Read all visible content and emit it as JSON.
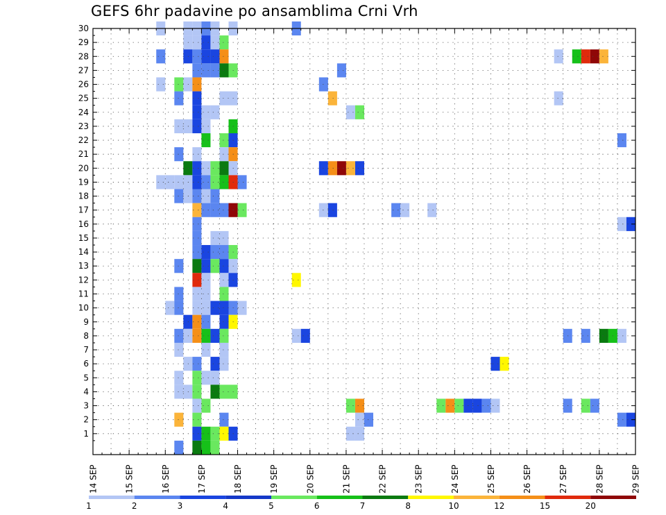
{
  "chart_data": {
    "type": "heatmap",
    "title": "GEFS 6hr padavine po ansamblima Crni Vrh",
    "xlabel": "",
    "ylabel": "",
    "x_ticks": [
      "14 SEP",
      "15 SEP",
      "16 SEP",
      "17 SEP",
      "18 SEP",
      "19 SEP",
      "20 SEP",
      "21 SEP",
      "22 SEP",
      "23 SEP",
      "24 SEP",
      "25 SEP",
      "26 SEP",
      "27 SEP",
      "28 SEP",
      "29 SEP"
    ],
    "y_ticks": [
      "1",
      "2",
      "3",
      "4",
      "5",
      "6",
      "7",
      "8",
      "9",
      "10",
      "11",
      "12",
      "13",
      "14",
      "15",
      "16",
      "17",
      "18",
      "19",
      "20",
      "21",
      "22",
      "23",
      "24",
      "25",
      "26",
      "27",
      "28",
      "29",
      "30"
    ],
    "x_range": [
      0,
      60
    ],
    "y_range": [
      0,
      30
    ],
    "grid": true,
    "legend_labels": [
      "1",
      "2",
      "3",
      "4",
      "5",
      "6",
      "7",
      "8",
      "10",
      "12",
      "15",
      "20"
    ],
    "legend_colors": [
      "#b3c6f5",
      "#5b86f0",
      "#1a45e0",
      "#1539c8",
      "#6ae85f",
      "#16c019",
      "#0a7a10",
      "#fff700",
      "#fbb43a",
      "#f58f18",
      "#e02a0c",
      "#8f0707"
    ],
    "cells": [
      {
        "m": 30,
        "t": 8,
        "v": 1
      },
      {
        "m": 30,
        "t": 11,
        "v": 1
      },
      {
        "m": 30,
        "t": 12,
        "v": 1
      },
      {
        "m": 30,
        "t": 13,
        "v": 2
      },
      {
        "m": 30,
        "t": 14,
        "v": 1
      },
      {
        "m": 30,
        "t": 16,
        "v": 1
      },
      {
        "m": 30,
        "t": 23,
        "v": 2
      },
      {
        "m": 29,
        "t": 11,
        "v": 1
      },
      {
        "m": 29,
        "t": 12,
        "v": 1
      },
      {
        "m": 29,
        "t": 13,
        "v": 3
      },
      {
        "m": 29,
        "t": 14,
        "v": 1
      },
      {
        "m": 29,
        "t": 15,
        "v": 5
      },
      {
        "m": 28,
        "t": 8,
        "v": 2
      },
      {
        "m": 28,
        "t": 11,
        "v": 3
      },
      {
        "m": 28,
        "t": 12,
        "v": 2
      },
      {
        "m": 28,
        "t": 13,
        "v": 3
      },
      {
        "m": 28,
        "t": 14,
        "v": 3
      },
      {
        "m": 28,
        "t": 15,
        "v": 12
      },
      {
        "m": 28,
        "t": 52,
        "v": 1
      },
      {
        "m": 28,
        "t": 54,
        "v": 6
      },
      {
        "m": 28,
        "t": 55,
        "v": 15
      },
      {
        "m": 28,
        "t": 56,
        "v": 20
      },
      {
        "m": 28,
        "t": 57,
        "v": 10
      },
      {
        "m": 27,
        "t": 12,
        "v": 2
      },
      {
        "m": 27,
        "t": 13,
        "v": 2
      },
      {
        "m": 27,
        "t": 14,
        "v": 2
      },
      {
        "m": 27,
        "t": 15,
        "v": 7
      },
      {
        "m": 27,
        "t": 16,
        "v": 5
      },
      {
        "m": 27,
        "t": 28,
        "v": 2
      },
      {
        "m": 26,
        "t": 8,
        "v": 1
      },
      {
        "m": 26,
        "t": 10,
        "v": 5
      },
      {
        "m": 26,
        "t": 11,
        "v": 1
      },
      {
        "m": 26,
        "t": 12,
        "v": 12
      },
      {
        "m": 26,
        "t": 26,
        "v": 2
      },
      {
        "m": 25,
        "t": 10,
        "v": 2
      },
      {
        "m": 25,
        "t": 12,
        "v": 3
      },
      {
        "m": 25,
        "t": 15,
        "v": 1
      },
      {
        "m": 25,
        "t": 16,
        "v": 1
      },
      {
        "m": 25,
        "t": 27,
        "v": 10
      },
      {
        "m": 25,
        "t": 52,
        "v": 1
      },
      {
        "m": 24,
        "t": 12,
        "v": 3
      },
      {
        "m": 24,
        "t": 13,
        "v": 1
      },
      {
        "m": 24,
        "t": 14,
        "v": 1
      },
      {
        "m": 24,
        "t": 29,
        "v": 1
      },
      {
        "m": 24,
        "t": 30,
        "v": 5
      },
      {
        "m": 23,
        "t": 10,
        "v": 1
      },
      {
        "m": 23,
        "t": 11,
        "v": 1
      },
      {
        "m": 23,
        "t": 12,
        "v": 3
      },
      {
        "m": 23,
        "t": 13,
        "v": 1
      },
      {
        "m": 23,
        "t": 16,
        "v": 6
      },
      {
        "m": 22,
        "t": 13,
        "v": 6
      },
      {
        "m": 22,
        "t": 15,
        "v": 5
      },
      {
        "m": 22,
        "t": 16,
        "v": 3
      },
      {
        "m": 22,
        "t": 59,
        "v": 2
      },
      {
        "m": 21,
        "t": 10,
        "v": 2
      },
      {
        "m": 21,
        "t": 12,
        "v": 1
      },
      {
        "m": 21,
        "t": 15,
        "v": 1
      },
      {
        "m": 21,
        "t": 16,
        "v": 12
      },
      {
        "m": 20,
        "t": 11,
        "v": 7
      },
      {
        "m": 20,
        "t": 12,
        "v": 3
      },
      {
        "m": 20,
        "t": 13,
        "v": 1
      },
      {
        "m": 20,
        "t": 14,
        "v": 5
      },
      {
        "m": 20,
        "t": 15,
        "v": 7
      },
      {
        "m": 20,
        "t": 16,
        "v": 1
      },
      {
        "m": 20,
        "t": 26,
        "v": 3
      },
      {
        "m": 20,
        "t": 27,
        "v": 12
      },
      {
        "m": 20,
        "t": 28,
        "v": 20
      },
      {
        "m": 20,
        "t": 29,
        "v": 10
      },
      {
        "m": 20,
        "t": 30,
        "v": 3
      },
      {
        "m": 19,
        "t": 8,
        "v": 1
      },
      {
        "m": 19,
        "t": 9,
        "v": 1
      },
      {
        "m": 19,
        "t": 10,
        "v": 1
      },
      {
        "m": 19,
        "t": 11,
        "v": 1
      },
      {
        "m": 19,
        "t": 12,
        "v": 3
      },
      {
        "m": 19,
        "t": 13,
        "v": 2
      },
      {
        "m": 19,
        "t": 14,
        "v": 5
      },
      {
        "m": 19,
        "t": 15,
        "v": 6
      },
      {
        "m": 19,
        "t": 16,
        "v": 15
      },
      {
        "m": 19,
        "t": 17,
        "v": 2
      },
      {
        "m": 18,
        "t": 10,
        "v": 2
      },
      {
        "m": 18,
        "t": 11,
        "v": 1
      },
      {
        "m": 18,
        "t": 12,
        "v": 2
      },
      {
        "m": 18,
        "t": 13,
        "v": 1
      },
      {
        "m": 18,
        "t": 14,
        "v": 2
      },
      {
        "m": 17,
        "t": 12,
        "v": 10
      },
      {
        "m": 17,
        "t": 13,
        "v": 2
      },
      {
        "m": 17,
        "t": 14,
        "v": 2
      },
      {
        "m": 17,
        "t": 15,
        "v": 2
      },
      {
        "m": 17,
        "t": 16,
        "v": 20
      },
      {
        "m": 17,
        "t": 17,
        "v": 5
      },
      {
        "m": 17,
        "t": 26,
        "v": 1
      },
      {
        "m": 17,
        "t": 27,
        "v": 3
      },
      {
        "m": 17,
        "t": 34,
        "v": 2
      },
      {
        "m": 17,
        "t": 35,
        "v": 1
      },
      {
        "m": 17,
        "t": 38,
        "v": 1
      },
      {
        "m": 16,
        "t": 12,
        "v": 2
      },
      {
        "m": 16,
        "t": 59,
        "v": 1
      },
      {
        "m": 16,
        "t": 60,
        "v": 3
      },
      {
        "m": 15,
        "t": 12,
        "v": 2
      },
      {
        "m": 15,
        "t": 14,
        "v": 1
      },
      {
        "m": 15,
        "t": 15,
        "v": 1
      },
      {
        "m": 14,
        "t": 12,
        "v": 2
      },
      {
        "m": 14,
        "t": 13,
        "v": 3
      },
      {
        "m": 14,
        "t": 14,
        "v": 2
      },
      {
        "m": 14,
        "t": 15,
        "v": 2
      },
      {
        "m": 14,
        "t": 16,
        "v": 5
      },
      {
        "m": 13,
        "t": 10,
        "v": 2
      },
      {
        "m": 13,
        "t": 12,
        "v": 7
      },
      {
        "m": 13,
        "t": 13,
        "v": 3
      },
      {
        "m": 13,
        "t": 14,
        "v": 5
      },
      {
        "m": 13,
        "t": 15,
        "v": 3
      },
      {
        "m": 13,
        "t": 16,
        "v": 1
      },
      {
        "m": 12,
        "t": 12,
        "v": 15
      },
      {
        "m": 12,
        "t": 13,
        "v": 1
      },
      {
        "m": 12,
        "t": 15,
        "v": 1
      },
      {
        "m": 12,
        "t": 16,
        "v": 3
      },
      {
        "m": 12,
        "t": 23,
        "v": 8
      },
      {
        "m": 11,
        "t": 10,
        "v": 2
      },
      {
        "m": 11,
        "t": 12,
        "v": 1
      },
      {
        "m": 11,
        "t": 13,
        "v": 1
      },
      {
        "m": 11,
        "t": 15,
        "v": 5
      },
      {
        "m": 10,
        "t": 9,
        "v": 1
      },
      {
        "m": 10,
        "t": 10,
        "v": 2
      },
      {
        "m": 10,
        "t": 12,
        "v": 1
      },
      {
        "m": 10,
        "t": 13,
        "v": 1
      },
      {
        "m": 10,
        "t": 14,
        "v": 3
      },
      {
        "m": 10,
        "t": 15,
        "v": 3
      },
      {
        "m": 10,
        "t": 16,
        "v": 2
      },
      {
        "m": 10,
        "t": 17,
        "v": 1
      },
      {
        "m": 9,
        "t": 11,
        "v": 3
      },
      {
        "m": 9,
        "t": 12,
        "v": 12
      },
      {
        "m": 9,
        "t": 13,
        "v": 2
      },
      {
        "m": 9,
        "t": 15,
        "v": 3
      },
      {
        "m": 9,
        "t": 16,
        "v": 8
      },
      {
        "m": 8,
        "t": 10,
        "v": 2
      },
      {
        "m": 8,
        "t": 11,
        "v": 1
      },
      {
        "m": 8,
        "t": 12,
        "v": 12
      },
      {
        "m": 8,
        "t": 13,
        "v": 6
      },
      {
        "m": 8,
        "t": 14,
        "v": 3
      },
      {
        "m": 8,
        "t": 15,
        "v": 5
      },
      {
        "m": 8,
        "t": 23,
        "v": 1
      },
      {
        "m": 8,
        "t": 24,
        "v": 3
      },
      {
        "m": 8,
        "t": 53,
        "v": 2
      },
      {
        "m": 8,
        "t": 55,
        "v": 2
      },
      {
        "m": 8,
        "t": 57,
        "v": 7
      },
      {
        "m": 8,
        "t": 58,
        "v": 6
      },
      {
        "m": 8,
        "t": 59,
        "v": 1
      },
      {
        "m": 7,
        "t": 10,
        "v": 1
      },
      {
        "m": 7,
        "t": 13,
        "v": 1
      },
      {
        "m": 7,
        "t": 15,
        "v": 1
      },
      {
        "m": 6,
        "t": 11,
        "v": 1
      },
      {
        "m": 6,
        "t": 12,
        "v": 2
      },
      {
        "m": 6,
        "t": 14,
        "v": 3
      },
      {
        "m": 6,
        "t": 15,
        "v": 1
      },
      {
        "m": 6,
        "t": 45,
        "v": 3
      },
      {
        "m": 6,
        "t": 46,
        "v": 8
      },
      {
        "m": 5,
        "t": 10,
        "v": 1
      },
      {
        "m": 5,
        "t": 12,
        "v": 5
      },
      {
        "m": 5,
        "t": 13,
        "v": 1
      },
      {
        "m": 5,
        "t": 14,
        "v": 1
      },
      {
        "m": 4,
        "t": 10,
        "v": 1
      },
      {
        "m": 4,
        "t": 11,
        "v": 1
      },
      {
        "m": 4,
        "t": 12,
        "v": 5
      },
      {
        "m": 4,
        "t": 14,
        "v": 7
      },
      {
        "m": 4,
        "t": 15,
        "v": 5
      },
      {
        "m": 4,
        "t": 16,
        "v": 5
      },
      {
        "m": 3,
        "t": 12,
        "v": 1
      },
      {
        "m": 3,
        "t": 13,
        "v": 5
      },
      {
        "m": 3,
        "t": 29,
        "v": 5
      },
      {
        "m": 3,
        "t": 30,
        "v": 12
      },
      {
        "m": 3,
        "t": 39,
        "v": 5
      },
      {
        "m": 3,
        "t": 40,
        "v": 12
      },
      {
        "m": 3,
        "t": 41,
        "v": 5
      },
      {
        "m": 3,
        "t": 42,
        "v": 3
      },
      {
        "m": 3,
        "t": 43,
        "v": 3
      },
      {
        "m": 3,
        "t": 44,
        "v": 2
      },
      {
        "m": 3,
        "t": 45,
        "v": 1
      },
      {
        "m": 3,
        "t": 53,
        "v": 2
      },
      {
        "m": 3,
        "t": 55,
        "v": 5
      },
      {
        "m": 3,
        "t": 56,
        "v": 2
      },
      {
        "m": 2,
        "t": 10,
        "v": 10
      },
      {
        "m": 2,
        "t": 12,
        "v": 5
      },
      {
        "m": 2,
        "t": 15,
        "v": 2
      },
      {
        "m": 2,
        "t": 30,
        "v": 1
      },
      {
        "m": 2,
        "t": 31,
        "v": 2
      },
      {
        "m": 2,
        "t": 59,
        "v": 2
      },
      {
        "m": 2,
        "t": 60,
        "v": 3
      },
      {
        "m": 1,
        "t": 12,
        "v": 3
      },
      {
        "m": 1,
        "t": 13,
        "v": 6
      },
      {
        "m": 1,
        "t": 14,
        "v": 5
      },
      {
        "m": 1,
        "t": 15,
        "v": 8
      },
      {
        "m": 1,
        "t": 16,
        "v": 3
      },
      {
        "m": 1,
        "t": 29,
        "v": 1
      },
      {
        "m": 1,
        "t": 30,
        "v": 1
      },
      {
        "m": 0,
        "t": 10,
        "v": 2
      },
      {
        "m": 0,
        "t": 12,
        "v": 7
      },
      {
        "m": 0,
        "t": 13,
        "v": 6
      },
      {
        "m": 0,
        "t": 14,
        "v": 5
      }
    ]
  }
}
